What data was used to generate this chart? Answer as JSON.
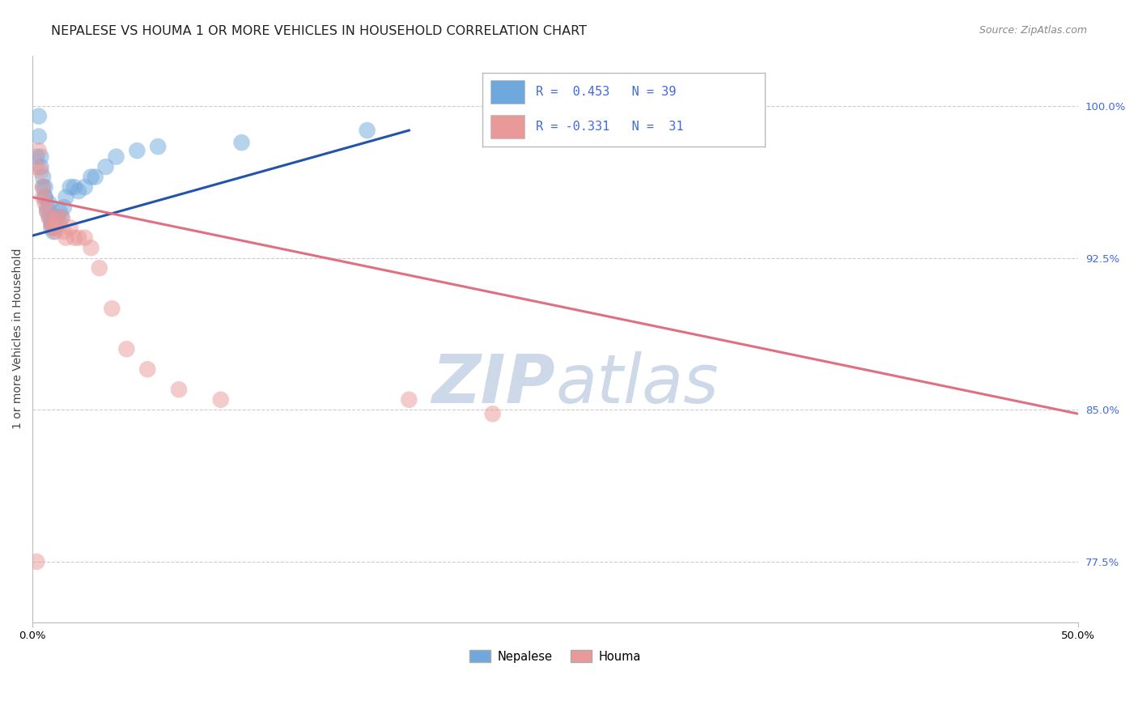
{
  "title": "NEPALESE VS HOUMA 1 OR MORE VEHICLES IN HOUSEHOLD CORRELATION CHART",
  "source": "Source: ZipAtlas.com",
  "ylabel": "1 or more Vehicles in Household",
  "xlim": [
    0.0,
    0.5
  ],
  "ylim": [
    0.745,
    1.025
  ],
  "ytick_vals": [
    0.775,
    0.85,
    0.925,
    1.0
  ],
  "ytick_labels": [
    "77.5%",
    "85.0%",
    "92.5%",
    "100.0%"
  ],
  "xtick_vals": [
    0.0,
    0.5
  ],
  "xtick_labels": [
    "0.0%",
    "50.0%"
  ],
  "blue_color": "#6fa8dc",
  "pink_color": "#ea9999",
  "blue_line_color": "#2255aa",
  "pink_line_color": "#e07080",
  "grid_color": "#cccccc",
  "title_color": "#222222",
  "watermark_color": "#cdd9e8",
  "legend_label_blue": "R =  0.453   N = 39",
  "legend_label_pink": "R = -0.331   N =  31",
  "legend_text_color": "#4169e1",
  "nepalese_x": [
    0.002,
    0.003,
    0.003,
    0.004,
    0.004,
    0.005,
    0.005,
    0.006,
    0.006,
    0.006,
    0.007,
    0.007,
    0.008,
    0.008,
    0.009,
    0.009,
    0.009,
    0.01,
    0.01,
    0.01,
    0.011,
    0.011,
    0.012,
    0.013,
    0.014,
    0.015,
    0.016,
    0.018,
    0.02,
    0.022,
    0.025,
    0.028,
    0.03,
    0.035,
    0.04,
    0.05,
    0.06,
    0.1,
    0.16
  ],
  "nepalese_y": [
    0.975,
    0.985,
    0.995,
    0.975,
    0.97,
    0.965,
    0.96,
    0.96,
    0.955,
    0.955,
    0.95,
    0.948,
    0.952,
    0.945,
    0.945,
    0.942,
    0.94,
    0.94,
    0.938,
    0.942,
    0.94,
    0.945,
    0.945,
    0.948,
    0.945,
    0.95,
    0.955,
    0.96,
    0.96,
    0.958,
    0.96,
    0.965,
    0.965,
    0.97,
    0.975,
    0.978,
    0.98,
    0.982,
    0.988
  ],
  "houma_x": [
    0.002,
    0.003,
    0.004,
    0.005,
    0.005,
    0.006,
    0.007,
    0.008,
    0.009,
    0.01,
    0.01,
    0.011,
    0.012,
    0.013,
    0.014,
    0.015,
    0.016,
    0.018,
    0.02,
    0.022,
    0.025,
    0.028,
    0.032,
    0.038,
    0.055,
    0.18,
    0.22,
    0.002,
    0.045,
    0.07,
    0.09
  ],
  "houma_y": [
    0.97,
    0.978,
    0.968,
    0.96,
    0.955,
    0.952,
    0.948,
    0.945,
    0.942,
    0.94,
    0.94,
    0.938,
    0.945,
    0.942,
    0.945,
    0.938,
    0.935,
    0.94,
    0.935,
    0.935,
    0.935,
    0.93,
    0.92,
    0.9,
    0.87,
    0.855,
    0.848,
    0.775,
    0.88,
    0.86,
    0.855
  ],
  "blue_trend_x": [
    0.0,
    0.18
  ],
  "blue_trend_y": [
    0.936,
    0.988
  ],
  "pink_trend_x": [
    0.0,
    0.5
  ],
  "pink_trend_y": [
    0.955,
    0.848
  ],
  "title_fontsize": 11.5,
  "source_fontsize": 9,
  "axis_label_fontsize": 10,
  "tick_fontsize": 9.5
}
